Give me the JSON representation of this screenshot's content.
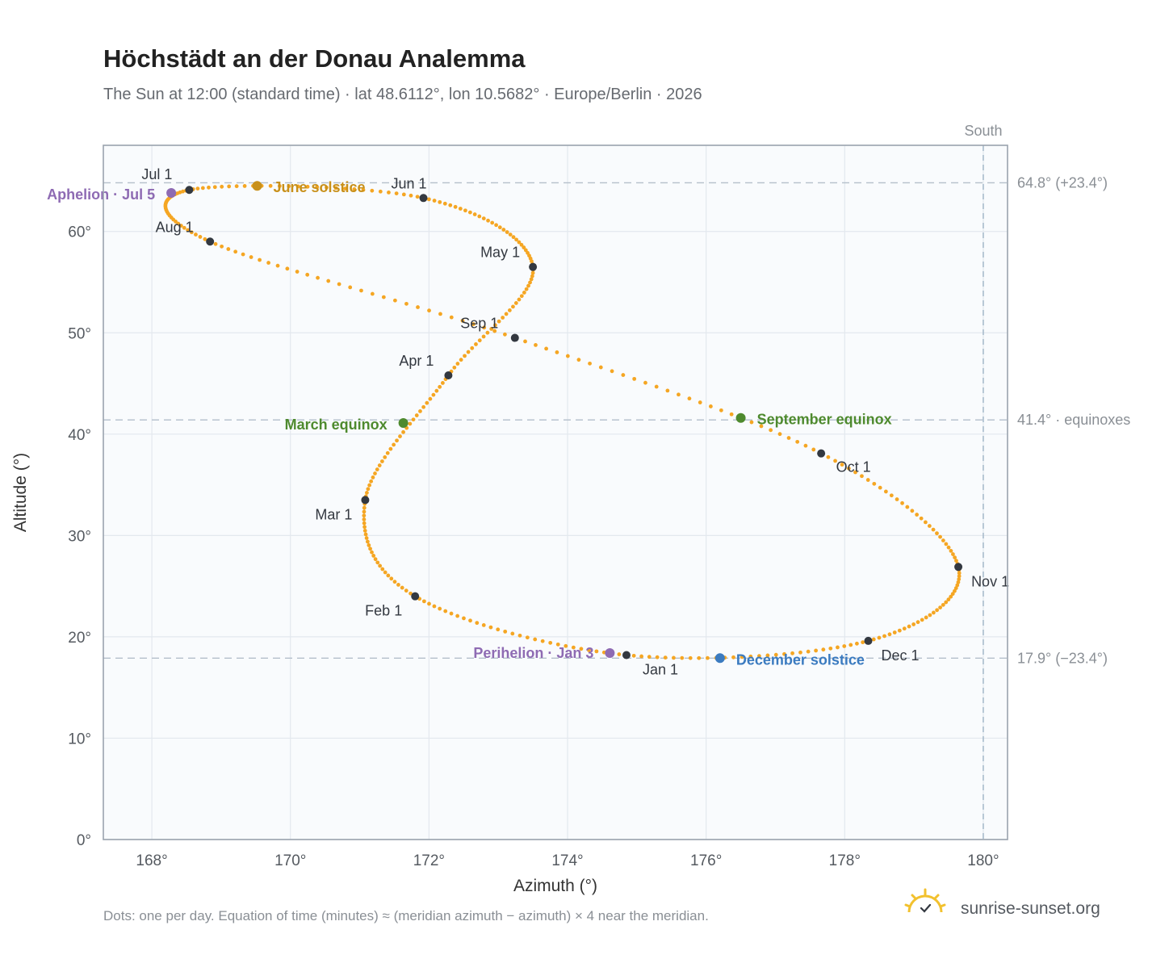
{
  "chart_data": {
    "type": "scatter",
    "title": "Höchstädt an der Donau Analemma",
    "subtitle": "The Sun at 12:00 (standard time) · lat 48.6112°, lon 10.5682° · Europe/Berlin · 2026",
    "xlabel": "Azimuth (°)",
    "ylabel": "Altitude (°)",
    "xlim": [
      167.3,
      180.35
    ],
    "ylim": [
      0,
      68.5
    ],
    "x_ticks": [
      168,
      170,
      172,
      174,
      176,
      178,
      180
    ],
    "x_tick_labels": [
      "168°",
      "170°",
      "172°",
      "174°",
      "176°",
      "178°",
      "180°"
    ],
    "y_ticks": [
      0,
      10,
      20,
      30,
      40,
      50,
      60
    ],
    "y_tick_labels": [
      "0°",
      "10°",
      "20°",
      "30°",
      "40°",
      "50°",
      "60°"
    ],
    "grid": true,
    "dot_color": "#F5A623",
    "month_marker_color": "#333840",
    "meridian": {
      "azimuth": 180,
      "label": "South"
    },
    "reference_lines": [
      {
        "altitude": 64.8,
        "label": "64.8° (+23.4°)"
      },
      {
        "altitude": 41.4,
        "label": "41.4° · equinoxes"
      },
      {
        "altitude": 17.9,
        "label": "17.9° (−23.4°)"
      }
    ],
    "month_markers": [
      {
        "label": "Jan 1",
        "az": 174.85,
        "alt": 18.2
      },
      {
        "label": "Feb 1",
        "az": 171.8,
        "alt": 24.0
      },
      {
        "label": "Mar 1",
        "az": 171.08,
        "alt": 33.5
      },
      {
        "label": "Apr 1",
        "az": 172.28,
        "alt": 45.8
      },
      {
        "label": "May 1",
        "az": 173.5,
        "alt": 56.5
      },
      {
        "label": "Jun 1",
        "az": 171.92,
        "alt": 63.3
      },
      {
        "label": "Jul 1",
        "az": 168.54,
        "alt": 64.1
      },
      {
        "label": "Aug 1",
        "az": 168.84,
        "alt": 59.0
      },
      {
        "label": "Sep 1",
        "az": 173.24,
        "alt": 49.5
      },
      {
        "label": "Oct 1",
        "az": 177.66,
        "alt": 38.1
      },
      {
        "label": "Nov 1",
        "az": 179.64,
        "alt": 26.9
      },
      {
        "label": "Dec 1",
        "az": 178.34,
        "alt": 19.6
      }
    ],
    "events": [
      {
        "label": "Aphelion · Jul 5",
        "az": 168.28,
        "alt": 63.8,
        "color": "#8E6BB3"
      },
      {
        "label": "June solstice",
        "az": 169.52,
        "alt": 64.5,
        "color": "#C8901A"
      },
      {
        "label": "March equinox",
        "az": 171.63,
        "alt": 41.1,
        "color": "#4E8A2E"
      },
      {
        "label": "September equinox",
        "az": 176.5,
        "alt": 41.6,
        "color": "#4E8A2E"
      },
      {
        "label": "Perihelion · Jan 3",
        "az": 174.61,
        "alt": 18.4,
        "color": "#8E6BB3"
      },
      {
        "label": "December solstice",
        "az": 176.2,
        "alt": 17.9,
        "color": "#3B7BC0"
      }
    ]
  },
  "footer": {
    "note": "Dots: one per day. Equation of time (minutes) ≈ (meridian azimuth − azimuth) × 4 near the meridian.",
    "brand": "sunrise-sunset.org",
    "brand_icon": "sun-check-icon",
    "brand_icon_color": "#F2C12E"
  }
}
